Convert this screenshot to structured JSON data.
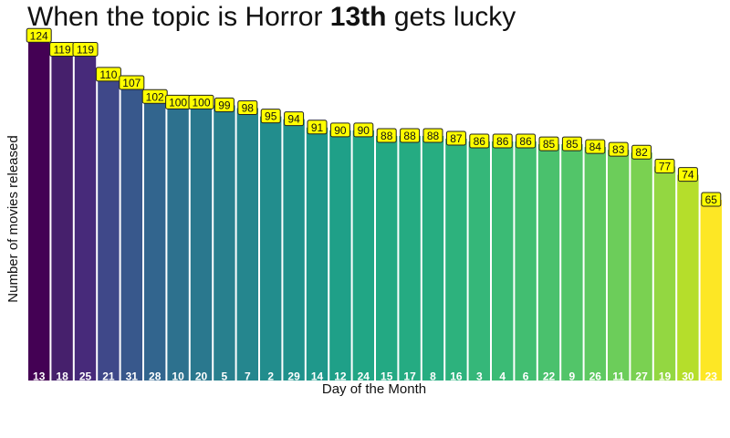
{
  "title": {
    "prefix": "When the topic is Horror ",
    "bold": "13th",
    "suffix": " gets lucky"
  },
  "chart_data": {
    "type": "bar",
    "xlabel": "Day of the Month",
    "ylabel": "Number of movies released",
    "categories": [
      "13",
      "18",
      "25",
      "21",
      "31",
      "28",
      "10",
      "20",
      "5",
      "7",
      "2",
      "29",
      "14",
      "12",
      "24",
      "15",
      "17",
      "8",
      "16",
      "3",
      "4",
      "6",
      "22",
      "9",
      "26",
      "11",
      "27",
      "19",
      "30",
      "23"
    ],
    "values": [
      124,
      119,
      119,
      110,
      107,
      102,
      100,
      100,
      99,
      98,
      95,
      94,
      91,
      90,
      90,
      88,
      88,
      88,
      87,
      86,
      86,
      86,
      85,
      85,
      84,
      83,
      82,
      77,
      74,
      65
    ],
    "colors": [
      "#440154",
      "#46206c",
      "#472a7a",
      "#3f4889",
      "#38588c",
      "#32658e",
      "#2d718e",
      "#2a788e",
      "#28808e",
      "#25868e",
      "#228d8d",
      "#20928c",
      "#1f988b",
      "#1fa088",
      "#21a685",
      "#23a983",
      "#25ab82",
      "#27ad81",
      "#2db27d",
      "#35b779",
      "#3bbb75",
      "#42be71",
      "#4ac16d",
      "#52c569",
      "#5ec962",
      "#6ccd5a",
      "#7ad151",
      "#93d741",
      "#b5de2b",
      "#fde725"
    ],
    "label_color": "#ffff00",
    "ylim": [
      0,
      130
    ],
    "grid": false,
    "legend": "none"
  }
}
